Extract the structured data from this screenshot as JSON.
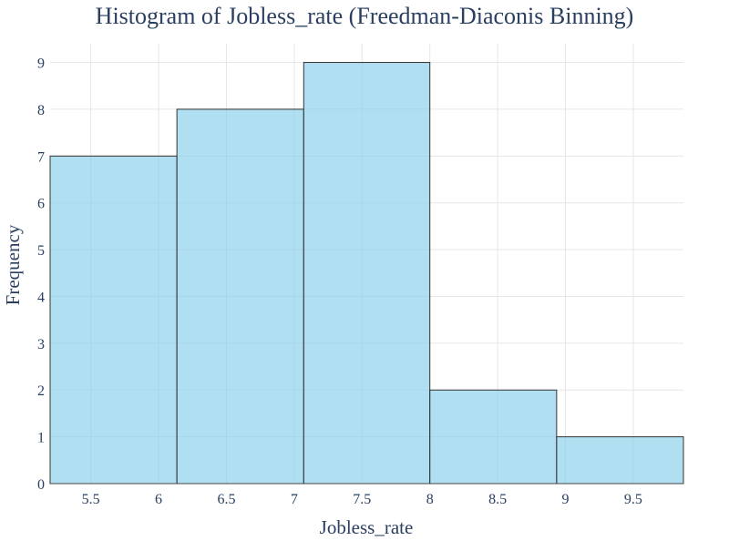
{
  "chart_data": {
    "type": "bar",
    "title": "Histogram of Jobless_rate (Freedman-Diaconis Binning)",
    "xlabel": "Jobless_rate",
    "ylabel": "Frequency",
    "xlim": [
      5.2,
      9.87
    ],
    "ylim": [
      0,
      9.4
    ],
    "xticks": [
      "5.5",
      "6",
      "6.5",
      "7",
      "7.5",
      "8",
      "8.5",
      "9",
      "9.5"
    ],
    "xtick_values": [
      5.5,
      6,
      6.5,
      7,
      7.5,
      8,
      8.5,
      9,
      9.5
    ],
    "yticks": [
      "0",
      "1",
      "2",
      "3",
      "4",
      "5",
      "6",
      "7",
      "8",
      "9"
    ],
    "ytick_values": [
      0,
      1,
      2,
      3,
      4,
      5,
      6,
      7,
      8,
      9
    ],
    "bins": [
      {
        "start": 5.2,
        "end": 6.135,
        "count": 7
      },
      {
        "start": 6.135,
        "end": 7.07,
        "count": 8
      },
      {
        "start": 7.07,
        "end": 8.0,
        "count": 9
      },
      {
        "start": 8.0,
        "end": 8.935,
        "count": 2
      },
      {
        "start": 8.935,
        "end": 9.87,
        "count": 1
      }
    ],
    "bar_color": "#87ceeb",
    "bar_outline": "#333333",
    "grid": true
  }
}
